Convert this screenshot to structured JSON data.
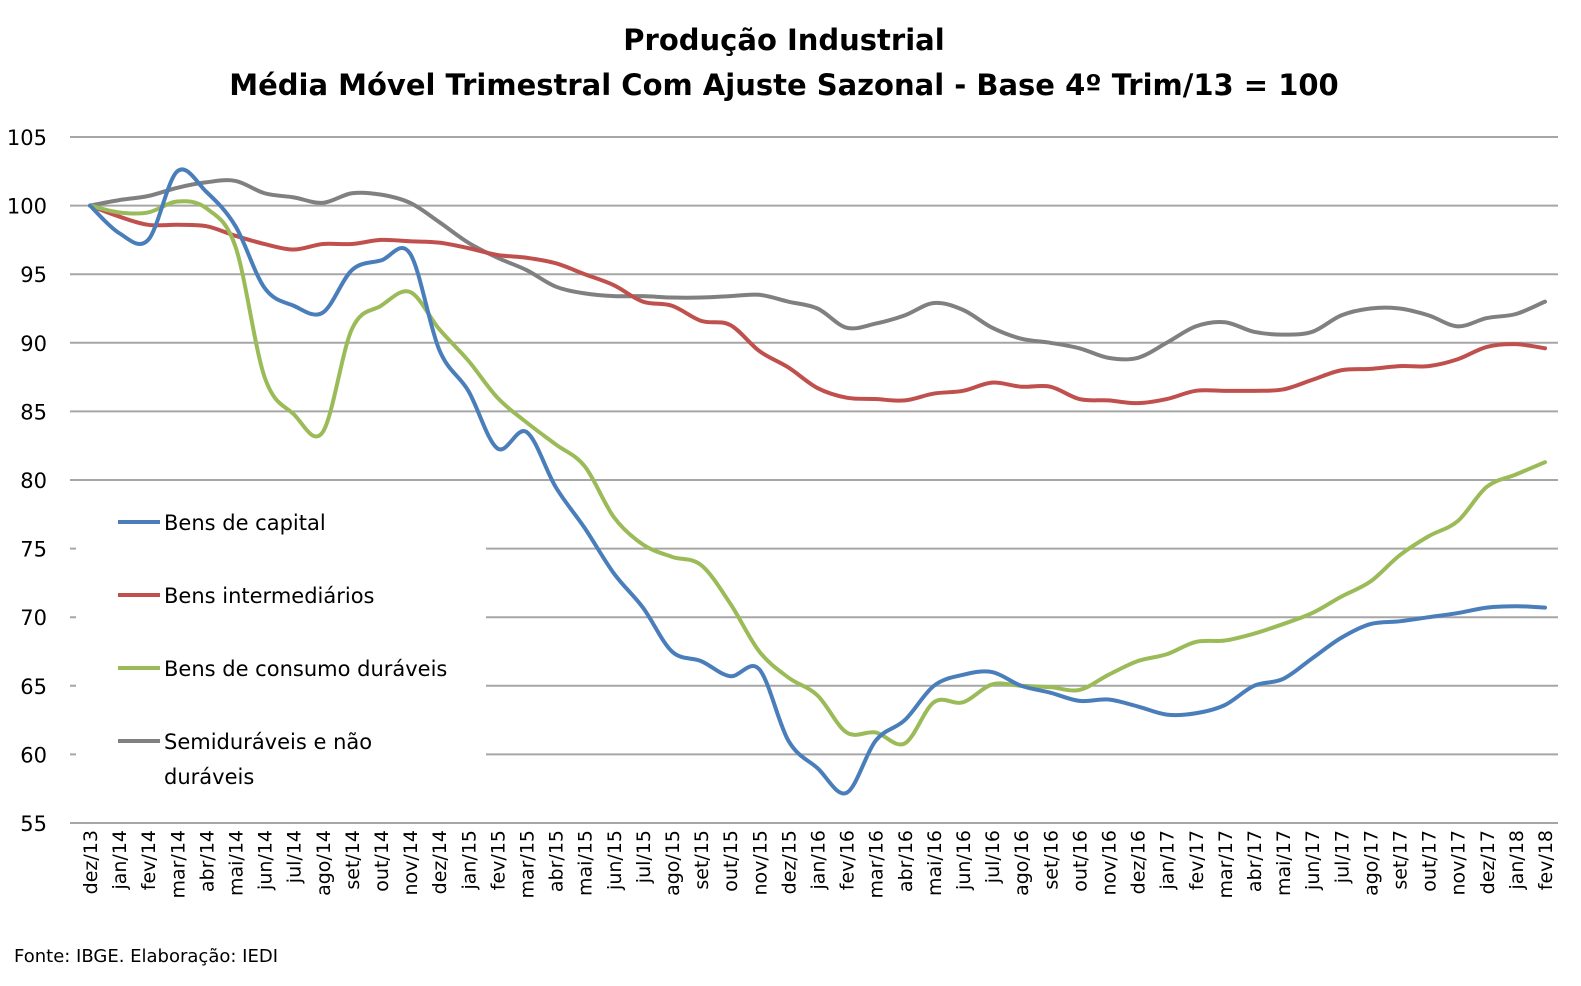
{
  "chart_data": {
    "type": "line",
    "title": "Produção Industrial",
    "subtitle": "Média Móvel Trimestral Com Ajuste Sazonal - Base 4º Trim/13 = 100",
    "xlabel": "",
    "ylabel": "",
    "ylim": [
      55,
      105
    ],
    "yticks": [
      55,
      60,
      65,
      70,
      75,
      80,
      85,
      90,
      95,
      100,
      105
    ],
    "grid": true,
    "legend_position": "left-inside",
    "source": "Fonte: IBGE. Elaboração: IEDI",
    "categories": [
      "dez/13",
      "jan/14",
      "fev/14",
      "mar/14",
      "abr/14",
      "mai/14",
      "jun/14",
      "jul/14",
      "ago/14",
      "set/14",
      "out/14",
      "nov/14",
      "dez/14",
      "jan/15",
      "fev/15",
      "mar/15",
      "abr/15",
      "mai/15",
      "jun/15",
      "jul/15",
      "ago/15",
      "set/15",
      "out/15",
      "nov/15",
      "dez/15",
      "jan/16",
      "fev/16",
      "mar/16",
      "abr/16",
      "mai/16",
      "jun/16",
      "jul/16",
      "ago/16",
      "set/16",
      "out/16",
      "nov/16",
      "dez/16",
      "jan/17",
      "fev/17",
      "mar/17",
      "abr/17",
      "mai/17",
      "jun/17",
      "jul/17",
      "ago/17",
      "set/17",
      "out/17",
      "nov/17",
      "dez/17",
      "jan/18",
      "fev/18"
    ],
    "series": [
      {
        "name": "Bens de capital",
        "color": "#4a7ebb",
        "values": [
          100,
          98,
          97.5,
          102.5,
          101,
          98.5,
          94,
          92.7,
          92.2,
          95.3,
          96,
          96.5,
          89.5,
          86.5,
          82.3,
          83.5,
          79.5,
          76.5,
          73.2,
          70.7,
          67.5,
          66.8,
          65.7,
          66.2,
          61,
          59,
          57.2,
          61,
          62.5,
          65,
          65.8,
          66,
          65,
          64.5,
          63.9,
          64,
          63.5,
          62.9,
          63,
          63.6,
          65,
          65.5,
          67,
          68.5,
          69.5,
          69.7,
          70,
          70.3,
          70.7,
          70.8,
          70.7
        ]
      },
      {
        "name": "Bens intermediários",
        "color": "#c0504d",
        "values": [
          100,
          99.2,
          98.6,
          98.6,
          98.5,
          97.8,
          97.2,
          96.8,
          97.2,
          97.2,
          97.5,
          97.4,
          97.3,
          96.9,
          96.4,
          96.2,
          95.8,
          95,
          94.2,
          93,
          92.7,
          91.6,
          91.3,
          89.4,
          88.2,
          86.7,
          86,
          85.9,
          85.8,
          86.3,
          86.5,
          87.1,
          86.8,
          86.8,
          85.9,
          85.8,
          85.6,
          85.9,
          86.5,
          86.5,
          86.5,
          86.6,
          87.3,
          88,
          88.1,
          88.3,
          88.3,
          88.8,
          89.7,
          89.9,
          89.6
        ]
      },
      {
        "name": "Bens de consumo duráveis",
        "color": "#9bbb59",
        "values": [
          100,
          99.5,
          99.5,
          100.3,
          99.8,
          97,
          87.5,
          84.8,
          83.5,
          91,
          92.7,
          93.7,
          91,
          88.7,
          86,
          84.2,
          82.6,
          81,
          77.3,
          75.3,
          74.4,
          73.8,
          71,
          67.5,
          65.6,
          64.3,
          61.6,
          61.6,
          60.8,
          63.8,
          63.8,
          65.1,
          65,
          64.9,
          64.7,
          65.8,
          66.8,
          67.3,
          68.2,
          68.3,
          68.8,
          69.5,
          70.3,
          71.5,
          72.6,
          74.5,
          75.9,
          77,
          79.5,
          80.4,
          81.3
        ]
      },
      {
        "name": "Semiduráveis e não duráveis",
        "name_line1": "Semiduráveis e não",
        "name_line2": "duráveis",
        "color": "#808080",
        "values": [
          100,
          100.4,
          100.7,
          101.3,
          101.7,
          101.8,
          100.9,
          100.6,
          100.2,
          100.9,
          100.8,
          100.2,
          98.8,
          97.3,
          96.2,
          95.3,
          94.1,
          93.6,
          93.4,
          93.4,
          93.3,
          93.3,
          93.4,
          93.5,
          93,
          92.5,
          91.1,
          91.4,
          92,
          92.9,
          92.4,
          91.1,
          90.3,
          90,
          89.6,
          88.9,
          88.9,
          90,
          91.2,
          91.5,
          90.8,
          90.6,
          90.8,
          92,
          92.5,
          92.5,
          92,
          91.2,
          91.8,
          92.1,
          93
        ]
      }
    ]
  }
}
